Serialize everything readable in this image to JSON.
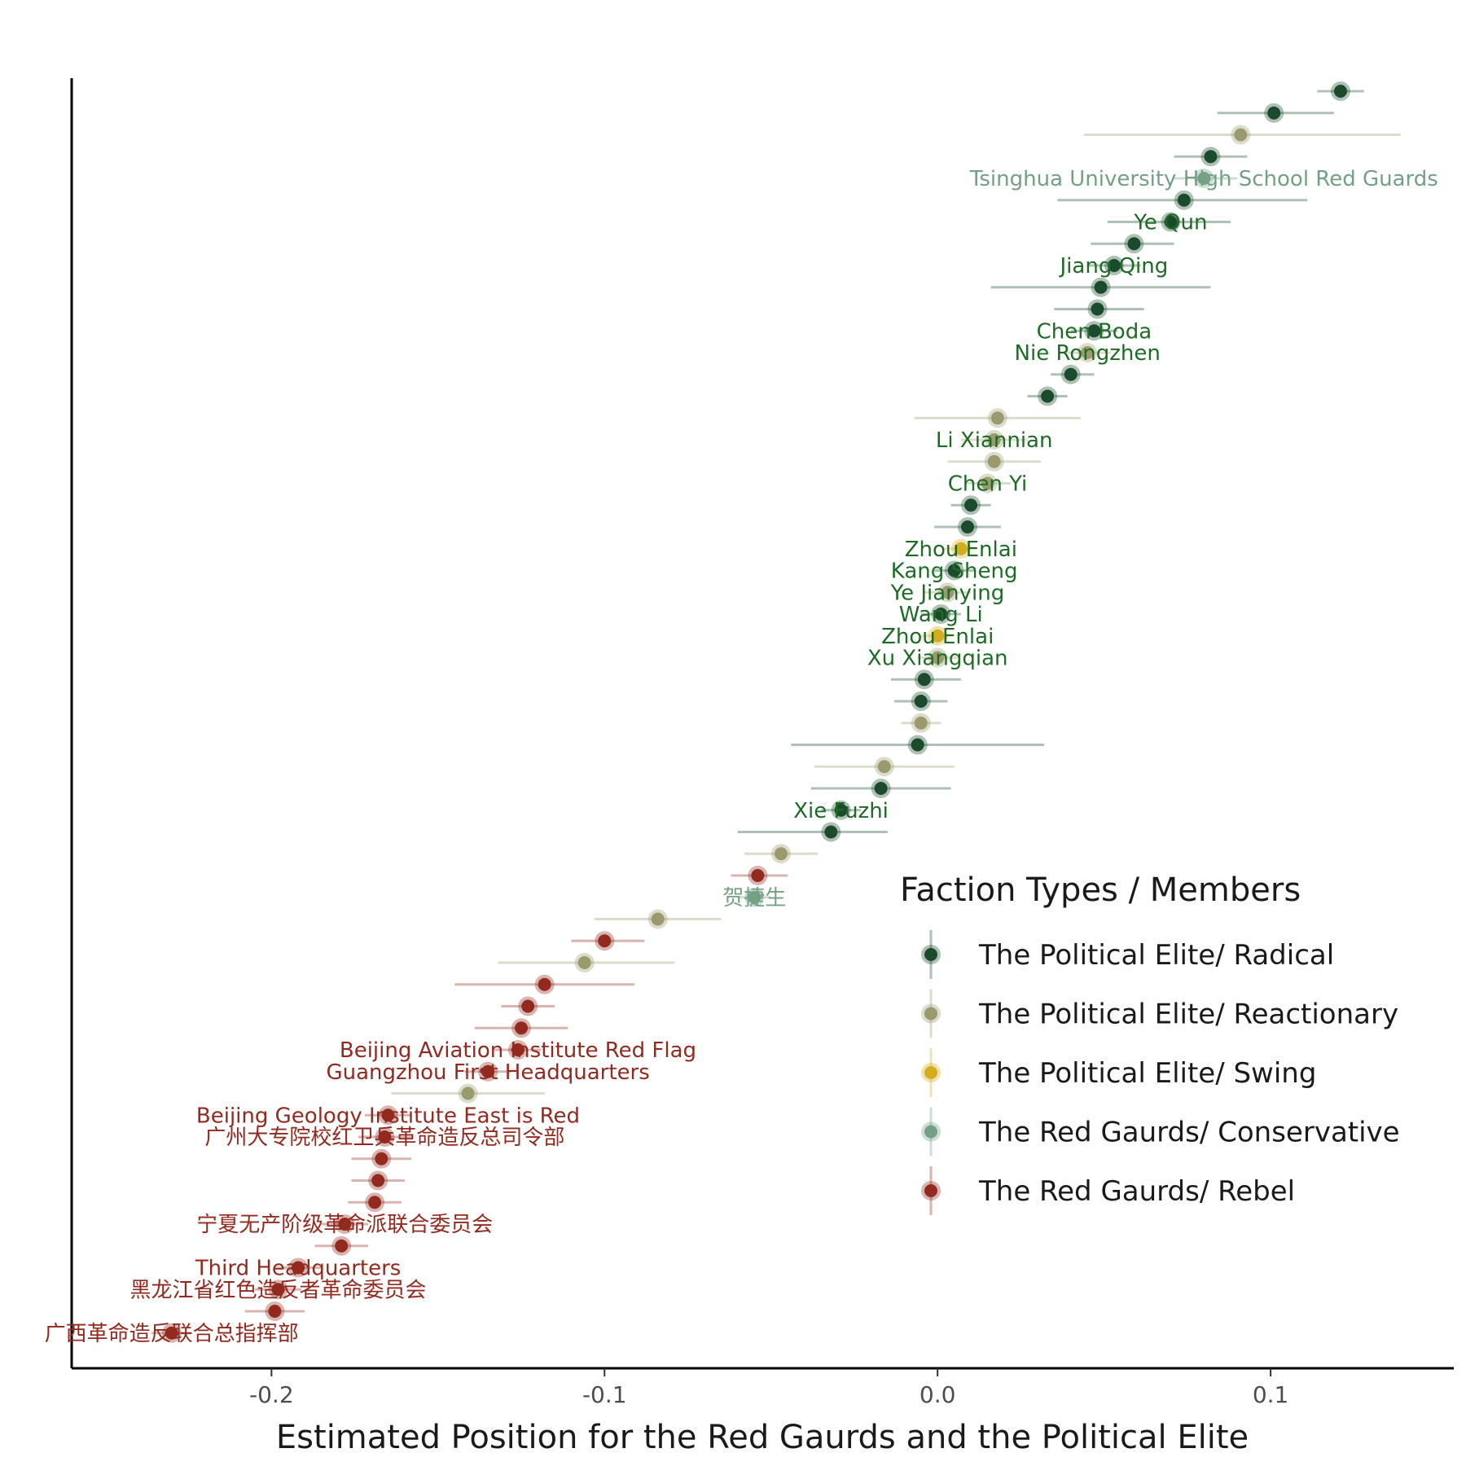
{
  "colors": {
    "The Political Elite/ Radical": "#1b4a2c",
    "The Political Elite/ Reactionary": "#9a9a6e",
    "The Political Elite/ Swing": "#d4ad1e",
    "The Red Gaurds/ Conservative": "#74a085",
    "The Red Gaurds/ Rebel": "#922a1f"
  },
  "chart_data": {
    "type": "scatter",
    "subtype": "dot-with-errorbars",
    "title": "",
    "xlabel": "Estimated Position for the Red Gaurds and the Political Elite",
    "ylabel": "",
    "xlim": [
      -0.26,
      0.155
    ],
    "xticks": [
      -0.2,
      -0.1,
      0.0,
      0.1
    ],
    "xtick_labels": [
      "-0.2",
      "-0.1",
      "0.0",
      "0.1"
    ],
    "grid": false,
    "legend": {
      "title": "Faction Types / Members",
      "placement": "bottom-right",
      "entries": [
        "The Political Elite/ Radical",
        "The Political Elite/ Reactionary",
        "The Political Elite/ Swing",
        "The Red Gaurds/ Conservative",
        "The Red Gaurds/ Rebel"
      ]
    },
    "points": [
      {
        "x": 0.121,
        "lo": 0.114,
        "hi": 0.128,
        "group": "The Political Elite/ Radical",
        "label": ""
      },
      {
        "x": 0.101,
        "lo": 0.084,
        "hi": 0.119,
        "group": "The Political Elite/ Radical",
        "label": ""
      },
      {
        "x": 0.091,
        "lo": 0.044,
        "hi": 0.139,
        "group": "The Political Elite/ Reactionary",
        "label": ""
      },
      {
        "x": 0.082,
        "lo": 0.071,
        "hi": 0.093,
        "group": "The Political Elite/ Radical",
        "label": ""
      },
      {
        "x": 0.08,
        "lo": 0.071,
        "hi": 0.09,
        "group": "The Red Gaurds/ Conservative",
        "label": "Tsinghua University High School Red Guards"
      },
      {
        "x": 0.074,
        "lo": 0.036,
        "hi": 0.111,
        "group": "The Political Elite/ Radical",
        "label": ""
      },
      {
        "x": 0.07,
        "lo": 0.051,
        "hi": 0.088,
        "group": "The Political Elite/ Radical",
        "label": "Ye Qun"
      },
      {
        "x": 0.059,
        "lo": 0.046,
        "hi": 0.071,
        "group": "The Political Elite/ Radical",
        "label": ""
      },
      {
        "x": 0.053,
        "lo": 0.045,
        "hi": 0.061,
        "group": "The Political Elite/ Radical",
        "label": "Jiang Qing"
      },
      {
        "x": 0.049,
        "lo": 0.016,
        "hi": 0.082,
        "group": "The Political Elite/ Radical",
        "label": ""
      },
      {
        "x": 0.048,
        "lo": 0.035,
        "hi": 0.062,
        "group": "The Political Elite/ Radical",
        "label": ""
      },
      {
        "x": 0.047,
        "lo": 0.04,
        "hi": 0.054,
        "group": "The Political Elite/ Radical",
        "label": "Chen Boda"
      },
      {
        "x": 0.045,
        "lo": 0.038,
        "hi": 0.052,
        "group": "The Political Elite/ Reactionary",
        "label": "Nie Rongzhen"
      },
      {
        "x": 0.04,
        "lo": 0.034,
        "hi": 0.047,
        "group": "The Political Elite/ Radical",
        "label": ""
      },
      {
        "x": 0.033,
        "lo": 0.027,
        "hi": 0.039,
        "group": "The Political Elite/ Radical",
        "label": ""
      },
      {
        "x": 0.018,
        "lo": -0.007,
        "hi": 0.043,
        "group": "The Political Elite/ Reactionary",
        "label": ""
      },
      {
        "x": 0.017,
        "lo": 0.007,
        "hi": 0.027,
        "group": "The Political Elite/ Reactionary",
        "label": "Li Xiannian"
      },
      {
        "x": 0.017,
        "lo": 0.003,
        "hi": 0.031,
        "group": "The Political Elite/ Reactionary",
        "label": ""
      },
      {
        "x": 0.015,
        "lo": 0.008,
        "hi": 0.022,
        "group": "The Political Elite/ Reactionary",
        "label": "Chen Yi"
      },
      {
        "x": 0.01,
        "lo": 0.004,
        "hi": 0.016,
        "group": "The Political Elite/ Radical",
        "label": ""
      },
      {
        "x": 0.009,
        "lo": -0.001,
        "hi": 0.019,
        "group": "The Political Elite/ Radical",
        "label": ""
      },
      {
        "x": 0.007,
        "lo": 0.002,
        "hi": 0.012,
        "group": "The Political Elite/ Swing",
        "label": "Zhou Enlai"
      },
      {
        "x": 0.005,
        "lo": -0.001,
        "hi": 0.011,
        "group": "The Political Elite/ Radical",
        "label": "Kang Sheng"
      },
      {
        "x": 0.003,
        "lo": -0.004,
        "hi": 0.01,
        "group": "The Political Elite/ Reactionary",
        "label": "Ye Jianying"
      },
      {
        "x": 0.001,
        "lo": -0.005,
        "hi": 0.007,
        "group": "The Political Elite/ Radical",
        "label": "Wang Li"
      },
      {
        "x": 0.0,
        "lo": -0.005,
        "hi": 0.005,
        "group": "The Political Elite/ Swing",
        "label": "Zhou Enlai"
      },
      {
        "x": 0.0,
        "lo": -0.006,
        "hi": 0.006,
        "group": "The Political Elite/ Reactionary",
        "label": "Xu Xiangqian"
      },
      {
        "x": -0.004,
        "lo": -0.014,
        "hi": 0.007,
        "group": "The Political Elite/ Radical",
        "label": ""
      },
      {
        "x": -0.005,
        "lo": -0.013,
        "hi": 0.003,
        "group": "The Political Elite/ Radical",
        "label": ""
      },
      {
        "x": -0.005,
        "lo": -0.011,
        "hi": 0.001,
        "group": "The Political Elite/ Reactionary",
        "label": ""
      },
      {
        "x": -0.006,
        "lo": -0.044,
        "hi": 0.032,
        "group": "The Political Elite/ Radical",
        "label": ""
      },
      {
        "x": -0.016,
        "lo": -0.037,
        "hi": 0.005,
        "group": "The Political Elite/ Reactionary",
        "label": ""
      },
      {
        "x": -0.017,
        "lo": -0.038,
        "hi": 0.004,
        "group": "The Political Elite/ Radical",
        "label": ""
      },
      {
        "x": -0.029,
        "lo": -0.035,
        "hi": -0.023,
        "group": "The Political Elite/ Radical",
        "label": "Xie Fuzhi"
      },
      {
        "x": -0.032,
        "lo": -0.06,
        "hi": -0.015,
        "group": "The Political Elite/ Radical",
        "label": ""
      },
      {
        "x": -0.047,
        "lo": -0.058,
        "hi": -0.036,
        "group": "The Political Elite/ Reactionary",
        "label": ""
      },
      {
        "x": -0.054,
        "lo": -0.062,
        "hi": -0.045,
        "group": "The Red Gaurds/ Rebel",
        "label": ""
      },
      {
        "x": -0.055,
        "lo": -0.06,
        "hi": -0.05,
        "group": "The Red Gaurds/ Conservative",
        "label": "贺捷生"
      },
      {
        "x": -0.084,
        "lo": -0.103,
        "hi": -0.065,
        "group": "The Political Elite/ Reactionary",
        "label": ""
      },
      {
        "x": -0.1,
        "lo": -0.11,
        "hi": -0.088,
        "group": "The Red Gaurds/ Rebel",
        "label": ""
      },
      {
        "x": -0.106,
        "lo": -0.132,
        "hi": -0.079,
        "group": "The Political Elite/ Reactionary",
        "label": ""
      },
      {
        "x": -0.118,
        "lo": -0.145,
        "hi": -0.091,
        "group": "The Red Gaurds/ Rebel",
        "label": ""
      },
      {
        "x": -0.123,
        "lo": -0.131,
        "hi": -0.115,
        "group": "The Red Gaurds/ Rebel",
        "label": ""
      },
      {
        "x": -0.125,
        "lo": -0.139,
        "hi": -0.111,
        "group": "The Red Gaurds/ Rebel",
        "label": ""
      },
      {
        "x": -0.126,
        "lo": -0.133,
        "hi": -0.119,
        "group": "The Red Gaurds/ Rebel",
        "label": "Beijing Aviation Institute Red Flag"
      },
      {
        "x": -0.135,
        "lo": -0.142,
        "hi": -0.128,
        "group": "The Red Gaurds/ Rebel",
        "label": "Guangzhou  First Headquarters"
      },
      {
        "x": -0.141,
        "lo": -0.164,
        "hi": -0.118,
        "group": "The Political Elite/ Reactionary",
        "label": ""
      },
      {
        "x": -0.165,
        "lo": -0.172,
        "hi": -0.158,
        "group": "The Red Gaurds/ Rebel",
        "label": "Beijing Geology Institute East is Red"
      },
      {
        "x": -0.166,
        "lo": -0.174,
        "hi": -0.158,
        "group": "The Red Gaurds/ Rebel",
        "label": "广州大专院校红卫兵革命造反总司令部"
      },
      {
        "x": -0.167,
        "lo": -0.176,
        "hi": -0.158,
        "group": "The Red Gaurds/ Rebel",
        "label": ""
      },
      {
        "x": -0.168,
        "lo": -0.176,
        "hi": -0.16,
        "group": "The Red Gaurds/ Rebel",
        "label": ""
      },
      {
        "x": -0.169,
        "lo": -0.177,
        "hi": -0.161,
        "group": "The Red Gaurds/ Rebel",
        "label": ""
      },
      {
        "x": -0.178,
        "lo": -0.185,
        "hi": -0.171,
        "group": "The Red Gaurds/ Rebel",
        "label": "宁夏无产阶级革命派联合委员会"
      },
      {
        "x": -0.179,
        "lo": -0.187,
        "hi": -0.171,
        "group": "The Red Gaurds/ Rebel",
        "label": ""
      },
      {
        "x": -0.192,
        "lo": -0.199,
        "hi": -0.185,
        "group": "The Red Gaurds/ Rebel",
        "label": "Third Headquarters"
      },
      {
        "x": -0.198,
        "lo": -0.205,
        "hi": -0.191,
        "group": "The Red Gaurds/ Rebel",
        "label": "黑龙江省红色造反者革命委员会"
      },
      {
        "x": -0.199,
        "lo": -0.208,
        "hi": -0.19,
        "group": "The Red Gaurds/ Rebel",
        "label": ""
      },
      {
        "x": -0.23,
        "lo": -0.236,
        "hi": -0.224,
        "group": "The Red Gaurds/ Rebel",
        "label": "广西革命造反联合总指挥部"
      }
    ]
  }
}
